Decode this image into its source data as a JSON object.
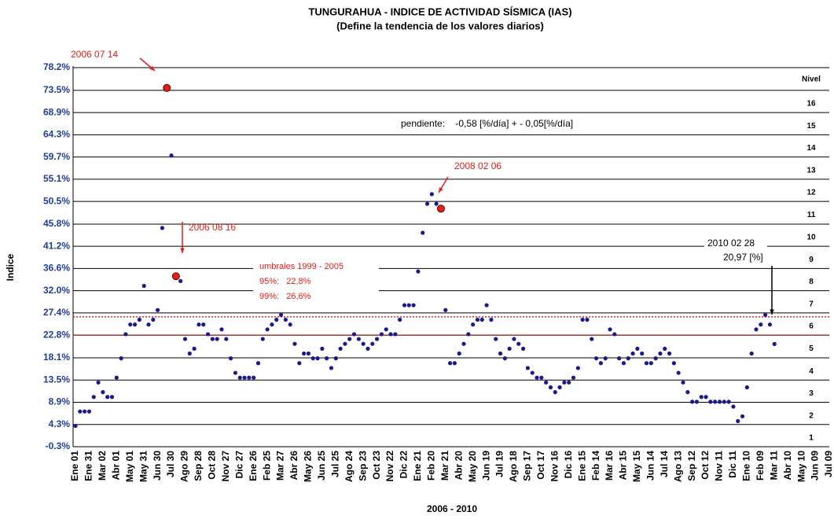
{
  "chart_data": {
    "type": "dot-line",
    "title": "TUNGURAHUA - INDICE DE ACTIVIDAD SÍSMICA (IAS)",
    "subtitle": "(Define la tendencia de los valores diarios)",
    "y_label": "Indice",
    "x_label": "2006 - 2010",
    "level_title": "Nivel",
    "levels": [
      "1",
      "2",
      "3",
      "4",
      "5",
      "6",
      "7",
      "8",
      "9",
      "10",
      "11",
      "12",
      "13",
      "14",
      "15",
      "16"
    ],
    "categories": [
      "Ene 01",
      null,
      null,
      "Ene 31",
      null,
      null,
      "Mar 02",
      null,
      null,
      "Abr 01",
      null,
      null,
      "May 01",
      null,
      null,
      "May 31",
      null,
      null,
      "Jun 30",
      null,
      null,
      "Jul 30",
      null,
      null,
      "Ago 29",
      null,
      null,
      "Sep 28",
      null,
      null,
      "Oct 28",
      null,
      null,
      "Nov 27",
      null,
      null,
      "Dic 27",
      null,
      null,
      "Ene 26",
      null,
      null,
      "Feb 25",
      null,
      null,
      "Mar 27",
      null,
      null,
      "Abr 26",
      null,
      null,
      "May 26",
      null,
      null,
      "Jun 25",
      null,
      null,
      "Jul 25",
      null,
      null,
      "Ago 24",
      null,
      null,
      "Sep 23",
      null,
      null,
      "Oct 23",
      null,
      null,
      "Nov 22",
      null,
      null,
      "Dic 22",
      null,
      null,
      "Ene 21",
      null,
      null,
      "Feb 20",
      null,
      null,
      "Mar 21",
      null,
      null,
      "Abr 20",
      null,
      null,
      "May 20",
      null,
      null,
      "Jun 19",
      null,
      null,
      "Jul 19",
      null,
      null,
      "Ago 18",
      null,
      null,
      "Sep 17",
      null,
      null,
      "Oct 17",
      null,
      null,
      "Nov 16",
      null,
      null,
      "Dic 16",
      null,
      null,
      "Ene 15",
      null,
      null,
      "Feb 14",
      null,
      null,
      "Mar 16",
      null,
      null,
      "Abr 15",
      null,
      null,
      "May 15",
      null,
      null,
      "Jun 14",
      null,
      null,
      "Jul 14",
      null,
      null,
      "Ago 13",
      null,
      null,
      "Sep 12",
      null,
      null,
      "Oct 12",
      null,
      null,
      "Nov 11",
      null,
      null,
      "Dic 11",
      null,
      null,
      "Ene 10",
      null,
      null,
      "Feb 09",
      null,
      null,
      "Mar 11",
      null,
      null,
      "Abr 10",
      null,
      null,
      "May 10",
      null,
      null,
      "Jun 09",
      null,
      null,
      "Jul 09"
    ],
    "series": [
      {
        "color": "#1a1a8c",
        "values": [
          4,
          7,
          7,
          7,
          10,
          13,
          11,
          10,
          10,
          14,
          18,
          23,
          25,
          25,
          26,
          33,
          25,
          26,
          28,
          45,
          74,
          60,
          35,
          34,
          22,
          19,
          20,
          25,
          25,
          23,
          22,
          22,
          24,
          22,
          18,
          15,
          14,
          14,
          14,
          14,
          17,
          22,
          24,
          25,
          26,
          27,
          26,
          25,
          21,
          17,
          19,
          19,
          18,
          18,
          20,
          18,
          16,
          18,
          20,
          21,
          22,
          23,
          22,
          21,
          20,
          21,
          22,
          23,
          24,
          23,
          23,
          26,
          29,
          29,
          29,
          36,
          44,
          50,
          52,
          50,
          49,
          28,
          17,
          17,
          19,
          21,
          23,
          25,
          26,
          26,
          29,
          26,
          22,
          19,
          18,
          20,
          22,
          21,
          20,
          16,
          15,
          14,
          14,
          13,
          12,
          11,
          12,
          13,
          13,
          14,
          16,
          26,
          26,
          22,
          18,
          17,
          18,
          24,
          23,
          18,
          17,
          18,
          19,
          20,
          19,
          17,
          17,
          18,
          19,
          20,
          19,
          17,
          15,
          13,
          11,
          9,
          9,
          10,
          10,
          9,
          9,
          9,
          9,
          9,
          8,
          5,
          6,
          12,
          19,
          24,
          25,
          27,
          25,
          20.97,
          null,
          null,
          null,
          null,
          null,
          null,
          null,
          null,
          null,
          null,
          null,
          null
        ]
      },
      {
        "color": "#e0201b",
        "values": [
          null,
          null,
          null,
          null,
          null,
          null,
          null,
          null,
          null,
          null,
          null,
          null,
          null,
          null,
          null,
          null,
          null,
          null,
          null,
          null,
          74,
          null,
          35,
          null,
          null,
          null,
          null,
          null,
          null,
          null,
          null,
          null,
          null,
          null,
          null,
          null,
          null,
          null,
          null,
          null,
          null,
          null,
          null,
          null,
          null,
          null,
          null,
          null,
          null,
          null,
          null,
          null,
          null,
          null,
          null,
          null,
          null,
          null,
          null,
          null,
          null,
          null,
          null,
          null,
          null,
          null,
          null,
          null,
          null,
          null,
          null,
          null,
          null,
          null,
          null,
          null,
          null,
          null,
          null,
          null,
          49,
          null,
          null,
          null,
          null,
          null,
          null,
          null,
          null,
          null,
          null,
          null,
          null,
          null,
          null,
          null,
          null,
          null,
          null,
          null,
          null,
          null,
          null,
          null,
          null,
          null,
          null,
          null,
          null,
          null,
          null,
          null,
          null,
          null,
          null,
          null,
          null,
          null,
          null,
          null,
          null,
          null,
          null,
          null,
          null,
          null,
          null,
          null,
          null,
          null,
          null,
          null,
          null,
          null,
          null,
          null,
          null,
          null,
          null,
          null,
          null,
          null,
          null,
          null,
          null,
          null,
          null,
          null,
          null,
          null,
          null,
          null,
          null,
          null,
          null,
          null,
          null,
          null,
          null,
          null,
          null,
          null,
          null,
          null,
          null,
          null
        ]
      }
    ],
    "ylim": [
      -0.3,
      78.2
    ],
    "yticks": [
      {
        "value": -0.3,
        "label": "-0.3%"
      },
      {
        "value": 4.3,
        "label": "4.3%"
      },
      {
        "value": 8.9,
        "label": "8.9%"
      },
      {
        "value": 13.5,
        "label": "13.5%"
      },
      {
        "value": 18.1,
        "label": "18.1%"
      },
      {
        "value": 22.8,
        "label": "22.8%"
      },
      {
        "value": 27.4,
        "label": "27.4%"
      },
      {
        "value": 32.0,
        "label": "32.0%"
      },
      {
        "value": 36.6,
        "label": "36.6%"
      },
      {
        "value": 41.2,
        "label": "41.2%"
      },
      {
        "value": 45.8,
        "label": "45.8%"
      },
      {
        "value": 50.5,
        "label": "50.5%"
      },
      {
        "value": 55.1,
        "label": "55.1%"
      },
      {
        "value": 59.7,
        "label": "59.7%"
      },
      {
        "value": 64.3,
        "label": "64.3%"
      },
      {
        "value": 68.9,
        "label": "68.9%"
      },
      {
        "value": 73.5,
        "label": "73.5%"
      },
      {
        "value": 78.2,
        "label": "78.2%"
      }
    ],
    "grid": true,
    "threshold_title": "umbrales 1999 - 2005",
    "thresholds": [
      {
        "value": 22.8,
        "label": "95%:   22,8%"
      },
      {
        "value": 26.6,
        "label": "99%:   26,6%"
      }
    ],
    "threshold_color": "#e0201b",
    "annotations": [
      {
        "text": "2006 07 14"
      },
      {
        "text": "2006 08 16"
      },
      {
        "text": "2008 02 06"
      },
      {
        "text": "2010 02 28"
      },
      {
        "text": "20,97 [%]"
      },
      {
        "text": "pendiente:    -0,58 [%/día] + - 0,05[%/día]"
      }
    ]
  }
}
